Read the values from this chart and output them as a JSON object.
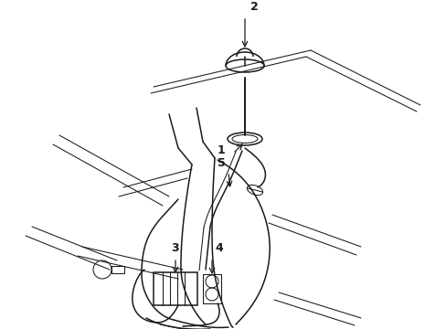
{
  "background_color": "#ffffff",
  "line_color": "#1a1a1a",
  "lw": 1.1,
  "thin_lw": 0.75,
  "label_fontsize": 9,
  "fig_width": 4.89,
  "fig_height": 3.6,
  "dpi": 100
}
